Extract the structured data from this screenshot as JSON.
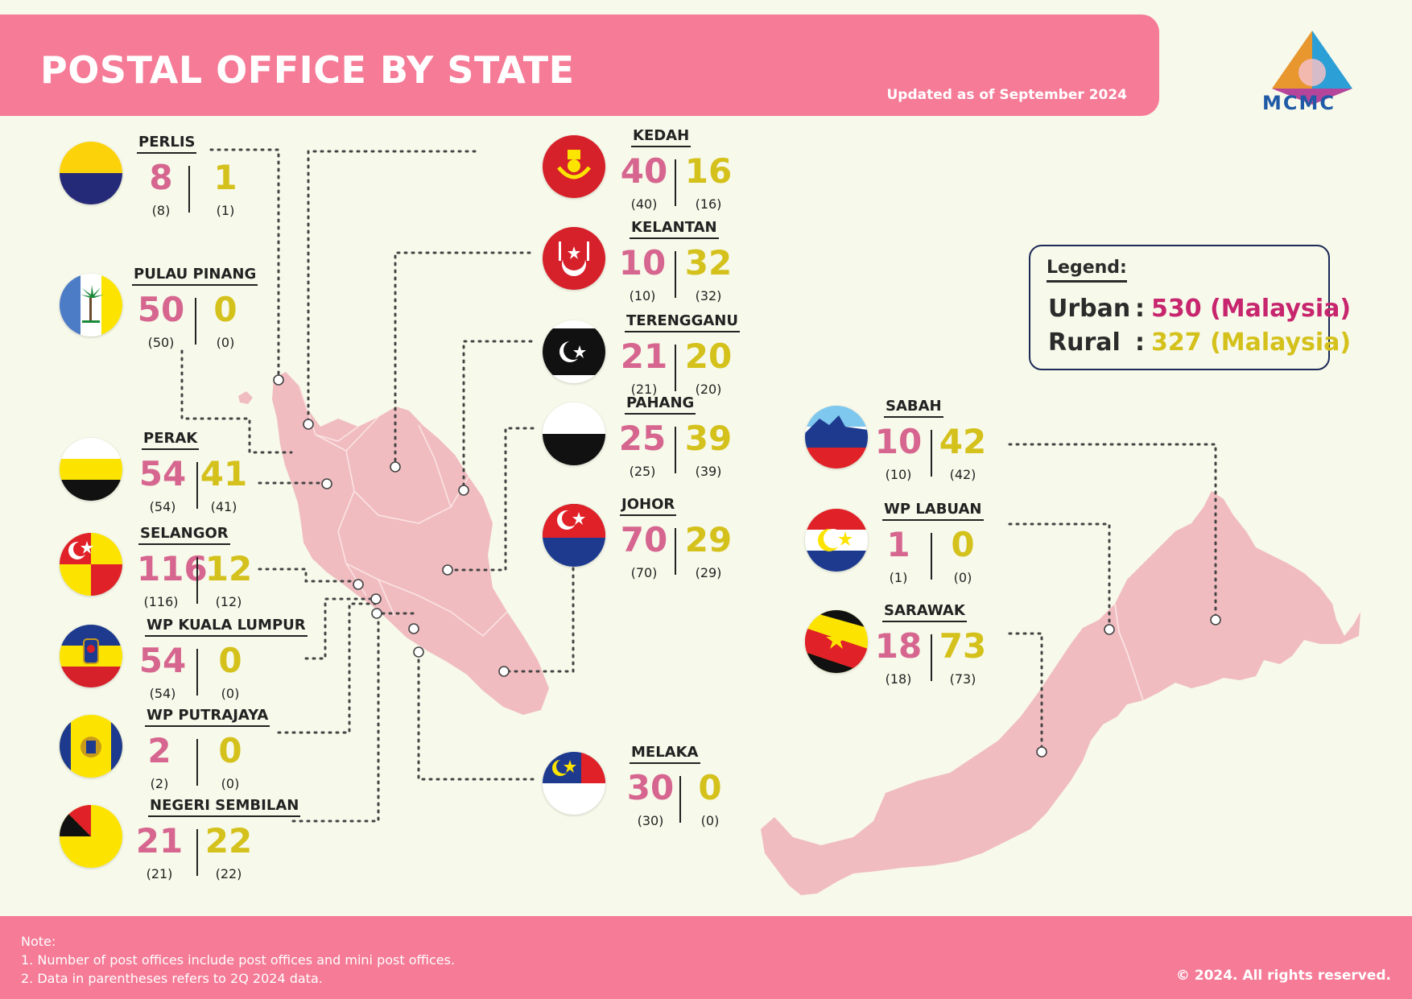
{
  "header": {
    "title": "POSTAL OFFICE BY STATE",
    "updated": "Updated as of September 2024"
  },
  "logo": {
    "text": "MCMC"
  },
  "legend": {
    "title": "Legend:",
    "urban_label": "Urban",
    "urban_value": "530 (Malaysia)",
    "rural_label": "Rural",
    "rural_value": "327 (Malaysia)",
    "colon": ":"
  },
  "colors": {
    "urban": "#d6668f",
    "rural": "#d4c11c",
    "header": "#f57b97",
    "land": "#f0bcc0"
  },
  "states": [
    {
      "name": "PERLIS",
      "urban": "8",
      "rural": "1",
      "urban_prev": "(8)",
      "rural_prev": "(1)"
    },
    {
      "name": "PULAU PINANG",
      "urban": "50",
      "rural": "0",
      "urban_prev": "(50)",
      "rural_prev": "(0)"
    },
    {
      "name": "PERAK",
      "urban": "54",
      "rural": "41",
      "urban_prev": "(54)",
      "rural_prev": "(41)"
    },
    {
      "name": "SELANGOR",
      "urban": "116",
      "rural": "12",
      "urban_prev": "(116)",
      "rural_prev": "(12)"
    },
    {
      "name": "WP KUALA LUMPUR",
      "urban": "54",
      "rural": "0",
      "urban_prev": "(54)",
      "rural_prev": "(0)"
    },
    {
      "name": "WP PUTRAJAYA",
      "urban": "2",
      "rural": "0",
      "urban_prev": "(2)",
      "rural_prev": "(0)"
    },
    {
      "name": "NEGERI SEMBILAN",
      "urban": "21",
      "rural": "22",
      "urban_prev": "(21)",
      "rural_prev": "(22)"
    },
    {
      "name": "KEDAH",
      "urban": "40",
      "rural": "16",
      "urban_prev": "(40)",
      "rural_prev": "(16)"
    },
    {
      "name": "KELANTAN",
      "urban": "10",
      "rural": "32",
      "urban_prev": "(10)",
      "rural_prev": "(32)"
    },
    {
      "name": "TERENGGANU",
      "urban": "21",
      "rural": "20",
      "urban_prev": "(21)",
      "rural_prev": "(20)"
    },
    {
      "name": "PAHANG",
      "urban": "25",
      "rural": "39",
      "urban_prev": "(25)",
      "rural_prev": "(39)"
    },
    {
      "name": "JOHOR",
      "urban": "70",
      "rural": "29",
      "urban_prev": "(70)",
      "rural_prev": "(29)"
    },
    {
      "name": "MELAKA",
      "urban": "30",
      "rural": "0",
      "urban_prev": "(30)",
      "rural_prev": "(0)"
    },
    {
      "name": "SABAH",
      "urban": "10",
      "rural": "42",
      "urban_prev": "(10)",
      "rural_prev": "(42)"
    },
    {
      "name": "WP LABUAN",
      "urban": "1",
      "rural": "0",
      "urban_prev": "(1)",
      "rural_prev": "(0)"
    },
    {
      "name": "SARAWAK",
      "urban": "18",
      "rural": "73",
      "urban_prev": "(18)",
      "rural_prev": "(73)"
    }
  ],
  "footer": {
    "note_title": "Note:",
    "note_1": "1.  Number of post offices include post offices and mini post offices.",
    "note_2": "2.  Data in parentheses refers to 2Q 2024 data.",
    "copyright": "© 2024. All rights reserved."
  }
}
